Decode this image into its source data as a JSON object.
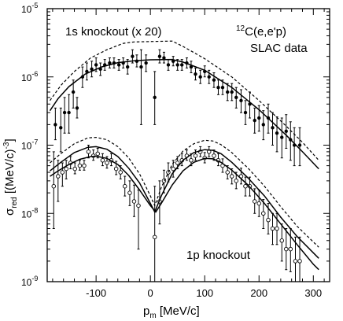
{
  "figure": {
    "annot_1s": "1s knockout (x 20)",
    "annot_1p": "1p knockout",
    "annot_target_sup": "12",
    "annot_target": "C(e,e'p)",
    "annot_source": "SLAC data",
    "ylabel_main": "σ",
    "ylabel_sub": "red",
    "ylabel_unit": " [(MeV/c)",
    "ylabel_exp": "-3",
    "ylabel_close": "]",
    "xlabel_main": "p",
    "xlabel_sub": "m",
    "xlabel_unit": " [MeV/c]"
  },
  "chart_data": {
    "type": "scatter",
    "xlabel": "p_m [MeV/c]",
    "ylabel": "σ_red [(MeV/c)^-3]",
    "xlim": [
      -190,
      330
    ],
    "ylim": [
      1e-09,
      1e-05
    ],
    "yscale": "log",
    "xticks": [
      -100,
      0,
      100,
      200,
      300
    ],
    "yticks": [
      1e-09,
      1e-08,
      1e-07,
      1e-06,
      1e-05
    ],
    "ytick_labels": [
      {
        "base": "10",
        "exp": "-9"
      },
      {
        "base": "10",
        "exp": "-8"
      },
      {
        "base": "10",
        "exp": "-7"
      },
      {
        "base": "10",
        "exp": "-6"
      },
      {
        "base": "10",
        "exp": "-5"
      }
    ],
    "series": [
      {
        "kind": "data",
        "marker": "filled",
        "points": [
          [
            -175,
            2e-07,
            1.2e-07,
            3.5e-07
          ],
          [
            -165,
            1.8e-07,
            8e-08,
            3.5e-07
          ],
          [
            -158,
            3e-07,
            1.5e-07,
            5e-07
          ],
          [
            -150,
            3e-07,
            1.5e-07,
            5.5e-07
          ],
          [
            -142,
            6e-07,
            3.5e-07,
            9e-07
          ],
          [
            -135,
            3.5e-07,
            2.5e-07,
            5e-07
          ],
          [
            -125,
            1e-06,
            7e-07,
            1.4e-06
          ],
          [
            -117,
            1.2e-06,
            9e-07,
            1.6e-06
          ],
          [
            -108,
            1.3e-06,
            1e-06,
            1.7e-06
          ],
          [
            -100,
            1.5e-06,
            1.2e-06,
            1.9e-06
          ],
          [
            -92,
            1.3e-06,
            1.05e-06,
            1.6e-06
          ],
          [
            -84,
            1.5e-06,
            1.25e-06,
            1.8e-06
          ],
          [
            -75,
            1.6e-06,
            1.35e-06,
            1.9e-06
          ],
          [
            -67,
            1.6e-06,
            1.35e-06,
            1.9e-06
          ],
          [
            -58,
            1.5e-06,
            1.25e-06,
            1.8e-06
          ],
          [
            -50,
            1.6e-06,
            1.35e-06,
            1.9e-06
          ],
          [
            -42,
            1.4e-06,
            1.1e-06,
            1.8e-06
          ],
          [
            -33,
            2e-06,
            1.6e-06,
            2.5e-06
          ],
          [
            -25,
            1.7e-06,
            1.4e-06,
            2.1e-06
          ],
          [
            -17,
            1.4e-06,
            2e-07,
            2.5e-06
          ],
          [
            -8,
            1.6e-06,
            1.2e-06,
            2.1e-06
          ],
          [
            8,
            5e-07,
            2e-07,
            1.2e-06
          ],
          [
            17,
            2e-06,
            1.6e-06,
            2.5e-06
          ],
          [
            25,
            1.9e-06,
            1.6e-06,
            2.3e-06
          ],
          [
            33,
            1.5e-06,
            1.25e-06,
            1.8e-06
          ],
          [
            42,
            1.7e-06,
            1.45e-06,
            2e-06
          ],
          [
            50,
            1.5e-06,
            1.25e-06,
            1.8e-06
          ],
          [
            58,
            1.5e-06,
            1.25e-06,
            1.8e-06
          ],
          [
            67,
            1.6e-06,
            1.35e-06,
            1.9e-06
          ],
          [
            75,
            1.4e-06,
            1.15e-06,
            1.7e-06
          ],
          [
            83,
            1.1e-06,
            9e-07,
            1.35e-06
          ],
          [
            92,
            1e-06,
            8e-07,
            1.25e-06
          ],
          [
            100,
            1.2e-06,
            1e-06,
            1.45e-06
          ],
          [
            108,
            1e-06,
            8e-07,
            1.25e-06
          ],
          [
            117,
            9e-07,
            7e-07,
            1.15e-06
          ],
          [
            125,
            7e-07,
            5.5e-07,
            9e-07
          ],
          [
            133,
            7e-07,
            5.5e-07,
            9e-07
          ],
          [
            142,
            6e-07,
            4.5e-07,
            8e-07
          ],
          [
            150,
            6e-07,
            4.5e-07,
            8e-07
          ],
          [
            158,
            5e-07,
            3.5e-07,
            7e-07
          ],
          [
            167,
            4.5e-07,
            3e-07,
            6.5e-07
          ],
          [
            175,
            3e-07,
            2e-07,
            4.5e-07
          ],
          [
            183,
            4e-07,
            2.5e-07,
            6e-07
          ],
          [
            192,
            2.3e-07,
            1.5e-07,
            3.5e-07
          ],
          [
            200,
            2.5e-07,
            1.6e-07,
            3.8e-07
          ],
          [
            208,
            2e-07,
            1.2e-07,
            3.2e-07
          ],
          [
            217,
            2.5e-07,
            1.5e-07,
            4e-07
          ],
          [
            225,
            1.8e-07,
            1e-07,
            3e-07
          ],
          [
            233,
            1.5e-07,
            8e-08,
            2.6e-07
          ],
          [
            242,
            1.3e-07,
            6.5e-08,
            2.5e-07
          ],
          [
            250,
            1.6e-07,
            9e-08,
            2.8e-07
          ],
          [
            258,
            1.2e-07,
            6e-08,
            2.2e-07
          ],
          [
            265,
            1e-07,
            5e-08,
            1.8e-07
          ],
          [
            275,
            1e-07,
            5e-08,
            1.8e-07
          ]
        ]
      },
      {
        "kind": "data",
        "marker": "open",
        "points": [
          [
            -178,
            2.5e-08,
            6e-09,
            8e-08
          ],
          [
            -170,
            3.5e-08,
            1.5e-08,
            6e-08
          ],
          [
            -162,
            4e-08,
            2.5e-08,
            5.5e-08
          ],
          [
            -155,
            4.5e-08,
            3.2e-08,
            6e-08
          ],
          [
            -147,
            5.5e-08,
            4.5e-08,
            6.8e-08
          ],
          [
            -139,
            4.5e-08,
            3.8e-08,
            5.5e-08
          ],
          [
            -130,
            5e-08,
            4.3e-08,
            6e-08
          ],
          [
            -122,
            5e-08,
            4.3e-08,
            6e-08
          ],
          [
            -114,
            8e-08,
            6.5e-08,
            1e-07
          ],
          [
            -105,
            7e-08,
            6e-08,
            8.5e-08
          ],
          [
            -97,
            7.5e-08,
            6.5e-08,
            9e-08
          ],
          [
            -88,
            6e-08,
            5e-08,
            7.5e-08
          ],
          [
            -80,
            5.5e-08,
            4.6e-08,
            6.8e-08
          ],
          [
            -72,
            6e-08,
            5e-08,
            7.5e-08
          ],
          [
            -63,
            4.5e-08,
            3.7e-08,
            5.8e-08
          ],
          [
            -55,
            4e-08,
            3.2e-08,
            5e-08
          ],
          [
            -47,
            2.5e-08,
            1.8e-08,
            3.5e-08
          ],
          [
            -38,
            2e-08,
            1.3e-08,
            3e-08
          ],
          [
            -30,
            1.5e-08,
            9e-09,
            2.6e-08
          ],
          [
            -22,
            1.3e-08,
            3e-09,
            2.2e-08
          ],
          [
            8,
            4.5e-09,
            1e-09,
            2.5e-08
          ],
          [
            17,
            1.5e-08,
            7e-09,
            3e-08
          ],
          [
            25,
            3e-08,
            2e-08,
            4.3e-08
          ],
          [
            33,
            4e-08,
            2.9e-08,
            5.5e-08
          ],
          [
            42,
            4.5e-08,
            3.4e-08,
            6e-08
          ],
          [
            50,
            5.5e-08,
            4.5e-08,
            6.8e-08
          ],
          [
            58,
            6e-08,
            5e-08,
            7.5e-08
          ],
          [
            67,
            7e-08,
            6e-08,
            8.5e-08
          ],
          [
            75,
            6e-08,
            5e-08,
            7.5e-08
          ],
          [
            83,
            7e-08,
            6e-08,
            8.5e-08
          ],
          [
            92,
            8e-08,
            6.8e-08,
            9.5e-08
          ],
          [
            100,
            6.5e-08,
            5.5e-08,
            7.8e-08
          ],
          [
            108,
            8e-08,
            6.8e-08,
            9.5e-08
          ],
          [
            117,
            7e-08,
            6e-08,
            8.5e-08
          ],
          [
            125,
            6e-08,
            5e-08,
            7.5e-08
          ],
          [
            133,
            5e-08,
            4e-08,
            6.3e-08
          ],
          [
            142,
            4e-08,
            3.2e-08,
            5e-08
          ],
          [
            150,
            3.5e-08,
            2.7e-08,
            4.5e-08
          ],
          [
            158,
            3e-08,
            2.3e-08,
            4e-08
          ],
          [
            167,
            3.5e-08,
            2.7e-08,
            4.6e-08
          ],
          [
            175,
            2.5e-08,
            1.8e-08,
            3.4e-08
          ],
          [
            183,
            2.5e-08,
            1.8e-08,
            3.4e-08
          ],
          [
            192,
            1.5e-08,
            1e-08,
            2.3e-08
          ],
          [
            200,
            1.4e-08,
            9e-09,
            2.2e-08
          ],
          [
            208,
            1e-08,
            6e-09,
            1.6e-08
          ],
          [
            217,
            8e-09,
            5e-09,
            1.4e-08
          ],
          [
            225,
            6e-09,
            3.5e-09,
            1e-08
          ],
          [
            233,
            6e-09,
            3.5e-09,
            1e-08
          ],
          [
            242,
            4e-09,
            2e-09,
            7e-09
          ],
          [
            250,
            3e-09,
            1.5e-09,
            6e-09
          ],
          [
            258,
            3e-09,
            1.4e-09,
            6e-09
          ],
          [
            267,
            2e-09,
            8e-10,
            4.5e-09
          ],
          [
            275,
            2e-09,
            8e-10,
            4.5e-09
          ]
        ]
      },
      {
        "kind": "curve",
        "style": "solid",
        "points": [
          [
            -185,
            3.2e-07
          ],
          [
            -170,
            4.8e-07
          ],
          [
            -150,
            7.2e-07
          ],
          [
            -120,
            1.1e-06
          ],
          [
            -90,
            1.4e-06
          ],
          [
            -60,
            1.62e-06
          ],
          [
            -30,
            1.72e-06
          ],
          [
            0,
            1.78e-06
          ],
          [
            40,
            1.8e-06
          ],
          [
            60,
            1.65e-06
          ],
          [
            100,
            1.25e-06
          ],
          [
            150,
            7e-07
          ],
          [
            200,
            3.3e-07
          ],
          [
            250,
            1.4e-07
          ],
          [
            280,
            8e-08
          ],
          [
            310,
            4.5e-08
          ]
        ]
      },
      {
        "kind": "curve",
        "style": "dashed",
        "points": [
          [
            -185,
            4.5e-07
          ],
          [
            -165,
            7.5e-07
          ],
          [
            -140,
            1.2e-06
          ],
          [
            -110,
            1.9e-06
          ],
          [
            -80,
            2.5e-06
          ],
          [
            -50,
            3.1e-06
          ],
          [
            -30,
            3.25e-06
          ],
          [
            0,
            3.3e-06
          ],
          [
            40,
            3.35e-06
          ],
          [
            60,
            2.8e-06
          ],
          [
            100,
            1.85e-06
          ],
          [
            150,
            1e-06
          ],
          [
            200,
            4.5e-07
          ],
          [
            250,
            1.9e-07
          ],
          [
            280,
            1.1e-07
          ],
          [
            310,
            6e-08
          ]
        ]
      },
      {
        "kind": "curve",
        "style": "solid",
        "points": [
          [
            -185,
            3.5e-08
          ],
          [
            -170,
            4.2e-08
          ],
          [
            -150,
            5.2e-08
          ],
          [
            -130,
            6.2e-08
          ],
          [
            -110,
            6.8e-08
          ],
          [
            -100,
            6.9e-08
          ],
          [
            -80,
            6.4e-08
          ],
          [
            -60,
            5.2e-08
          ],
          [
            -40,
            3.6e-08
          ],
          [
            -20,
            2.2e-08
          ],
          [
            0,
            1.3e-08
          ],
          [
            10,
            1.05e-08
          ],
          [
            20,
            1.4e-08
          ],
          [
            40,
            2.6e-08
          ],
          [
            60,
            4.2e-08
          ],
          [
            80,
            5.6e-08
          ],
          [
            100,
            6.4e-08
          ],
          [
            115,
            6.3e-08
          ],
          [
            130,
            5.6e-08
          ],
          [
            150,
            4.3e-08
          ],
          [
            180,
            2.6e-08
          ],
          [
            210,
            1.4e-08
          ],
          [
            240,
            7e-09
          ],
          [
            270,
            3.5e-09
          ],
          [
            300,
            1.8e-09
          ],
          [
            310,
            1.5e-09
          ]
        ]
      },
      {
        "kind": "curve",
        "style": "solid",
        "points": [
          [
            -185,
            4.2e-08
          ],
          [
            -165,
            5.6e-08
          ],
          [
            -140,
            7.8e-08
          ],
          [
            -115,
            9.3e-08
          ],
          [
            -100,
            9.5e-08
          ],
          [
            -80,
            8.7e-08
          ],
          [
            -60,
            6.8e-08
          ],
          [
            -40,
            4.6e-08
          ],
          [
            -20,
            2.8e-08
          ],
          [
            0,
            1.4e-08
          ],
          [
            8,
            1.05e-08
          ],
          [
            20,
            1.8e-08
          ],
          [
            40,
            3.8e-08
          ],
          [
            60,
            6e-08
          ],
          [
            80,
            7.8e-08
          ],
          [
            100,
            8.6e-08
          ],
          [
            115,
            8.4e-08
          ],
          [
            130,
            7.5e-08
          ],
          [
            150,
            5.6e-08
          ],
          [
            180,
            3.3e-08
          ],
          [
            210,
            1.8e-08
          ],
          [
            240,
            8.8e-09
          ],
          [
            270,
            4.6e-09
          ],
          [
            310,
            2.2e-09
          ]
        ]
      },
      {
        "kind": "curve",
        "style": "dashed",
        "points": [
          [
            -185,
            5.5e-08
          ],
          [
            -165,
            7.5e-08
          ],
          [
            -140,
            1.05e-07
          ],
          [
            -115,
            1.28e-07
          ],
          [
            -100,
            1.3e-07
          ],
          [
            -80,
            1.2e-07
          ],
          [
            -60,
            9.5e-08
          ],
          [
            -40,
            6.5e-08
          ],
          [
            -20,
            3.8e-08
          ],
          [
            0,
            1.8e-08
          ],
          [
            8,
            1.3e-08
          ],
          [
            20,
            2.4e-08
          ],
          [
            40,
            5.2e-08
          ],
          [
            60,
            8.2e-08
          ],
          [
            80,
            1.05e-07
          ],
          [
            100,
            1.18e-07
          ],
          [
            115,
            1.15e-07
          ],
          [
            130,
            1.02e-07
          ],
          [
            150,
            7.8e-08
          ],
          [
            180,
            4.6e-08
          ],
          [
            210,
            2.5e-08
          ],
          [
            240,
            1.25e-08
          ],
          [
            270,
            6.5e-09
          ],
          [
            310,
            3.2e-09
          ]
        ]
      }
    ]
  }
}
